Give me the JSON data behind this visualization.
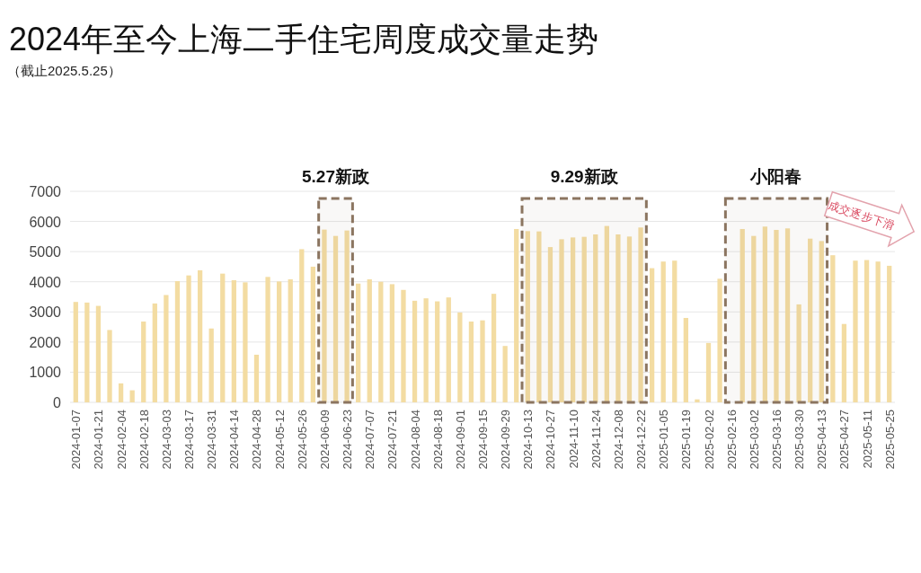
{
  "chart_data": {
    "type": "bar",
    "title": "2024年至今上海二手住宅周度成交量走势",
    "subtitle": "（截止2025.5.25）",
    "categories": [
      "2024-01-07",
      null,
      "2024-01-21",
      null,
      "2024-02-04",
      null,
      "2024-02-18",
      null,
      "2024-03-03",
      null,
      "2024-03-17",
      null,
      "2024-03-31",
      null,
      "2024-04-14",
      null,
      "2024-04-28",
      null,
      "2024-05-12",
      null,
      "2024-05-26",
      null,
      "2024-06-09",
      null,
      "2024-06-23",
      null,
      "2024-07-07",
      null,
      "2024-07-21",
      null,
      "2024-08-04",
      null,
      "2024-08-18",
      null,
      "2024-09-01",
      null,
      "2024-09-15",
      null,
      "2024-09-29",
      null,
      "2024-10-13",
      null,
      "2024-10-27",
      null,
      "2024-11-10",
      null,
      "2024-11-24",
      null,
      "2024-12-08",
      null,
      "2024-12-22",
      null,
      "2025-01-05",
      null,
      "2025-01-19",
      null,
      "2025-02-02",
      null,
      "2025-02-16",
      null,
      "2025-03-02",
      null,
      "2025-03-16",
      null,
      "2025-03-30",
      null,
      "2025-04-13",
      null,
      "2025-04-27",
      null,
      "2025-05-11",
      null,
      "2025-05-25"
    ],
    "values": [
      3330,
      3310,
      3200,
      2400,
      630,
      400,
      2680,
      3280,
      3560,
      4020,
      4210,
      4380,
      2450,
      4270,
      4050,
      3980,
      1580,
      4160,
      4010,
      4080,
      5080,
      4500,
      5730,
      5520,
      5700,
      3940,
      4080,
      4000,
      3920,
      3730,
      3370,
      3450,
      3350,
      3480,
      2980,
      2680,
      2720,
      3600,
      1870,
      5750,
      5680,
      5670,
      5150,
      5410,
      5470,
      5490,
      5570,
      5850,
      5570,
      5500,
      5800,
      4450,
      4670,
      4700,
      2800,
      100,
      1970,
      4100,
      null,
      5750,
      5520,
      5830,
      5720,
      5770,
      3250,
      5430,
      5350,
      4880,
      2600,
      4700,
      4720,
      4670,
      4530
    ],
    "color": "#f3dca2",
    "ylim": [
      0,
      7000
    ],
    "yticks": [
      0,
      1000,
      2000,
      3000,
      4000,
      5000,
      6000,
      7000
    ],
    "grid": "y",
    "bands": [
      {
        "axis": "x",
        "from": "2024-06-09",
        "to": "2024-06-23",
        "label": "5.27新政",
        "color": "#8b7560"
      },
      {
        "axis": "x",
        "from": "2024-10-13",
        "to": "2024-12-22",
        "label": "9.29新政",
        "color": "#8b7560"
      },
      {
        "axis": "x",
        "from": "2025-02-16",
        "to": "2025-04-13",
        "label": "小阳春",
        "color": "#8b7560"
      }
    ],
    "annotations": [
      "成交逐步下滑"
    ]
  }
}
